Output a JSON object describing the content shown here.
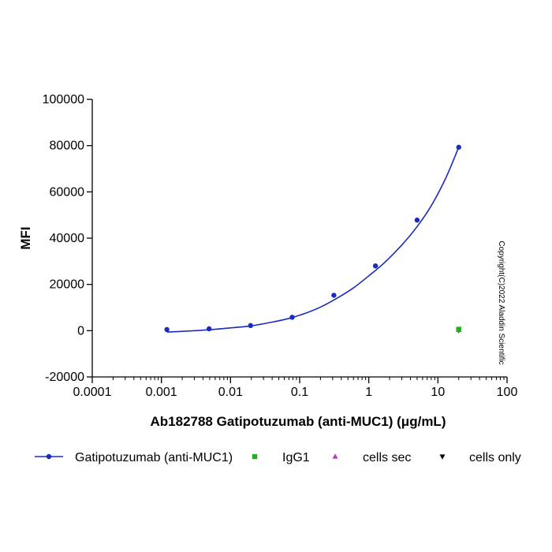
{
  "chart_data": {
    "type": "scatter",
    "xlabel": "Ab182788 Gatipotuzumab (anti-MUC1) (μg/mL)",
    "ylabel": "MFI",
    "xscale": "log",
    "xlim": [
      0.0001,
      100
    ],
    "ylim": [
      -20000,
      100000
    ],
    "x_ticks": [
      0.0001,
      0.001,
      0.01,
      0.1,
      1,
      10,
      100
    ],
    "x_tick_labels": [
      "0.0001",
      "0.001",
      "0.01",
      "0.1",
      "1",
      "10",
      "100"
    ],
    "y_ticks": [
      -20000,
      0,
      20000,
      40000,
      60000,
      80000,
      100000
    ],
    "y_tick_labels": [
      "-20000",
      "0",
      "20000",
      "40000",
      "60000",
      "80000",
      "100000"
    ],
    "legend_position": "bottom",
    "series": [
      {
        "name": "Gatipotuzumab (anti-MUC1)",
        "marker": "circle",
        "color": "#1a2bbf",
        "fit_curve": true,
        "x": [
          0.0012,
          0.0049,
          0.0195,
          0.078,
          0.3125,
          1.25,
          5,
          20
        ],
        "y": [
          500,
          800,
          2200,
          5800,
          15300,
          28000,
          47800,
          79300
        ]
      },
      {
        "name": "IgG1",
        "marker": "square",
        "color": "#22b022",
        "x": [
          20
        ],
        "y": [
          600
        ]
      },
      {
        "name": "cells sec",
        "marker": "triangle-up",
        "color": "#b13bbf",
        "x": [
          20
        ],
        "y": [
          300
        ]
      },
      {
        "name": "cells only",
        "marker": "triangle-down",
        "color": "#000000",
        "x": [
          20
        ],
        "y": [
          200
        ]
      }
    ],
    "curve_fit": {
      "x": [
        0.0012,
        0.002,
        0.0035,
        0.006,
        0.01,
        0.02,
        0.04,
        0.07,
        0.12,
        0.2,
        0.35,
        0.6,
        1,
        1.7,
        3,
        5,
        8,
        13,
        20
      ],
      "y": [
        -600,
        -300,
        100,
        600,
        1200,
        2100,
        3700,
        5300,
        7500,
        10200,
        14100,
        18500,
        23700,
        29500,
        37000,
        45000,
        54000,
        66000,
        79300
      ]
    },
    "annotation": "Copyright(C)2022 Aladdin Scientific"
  }
}
